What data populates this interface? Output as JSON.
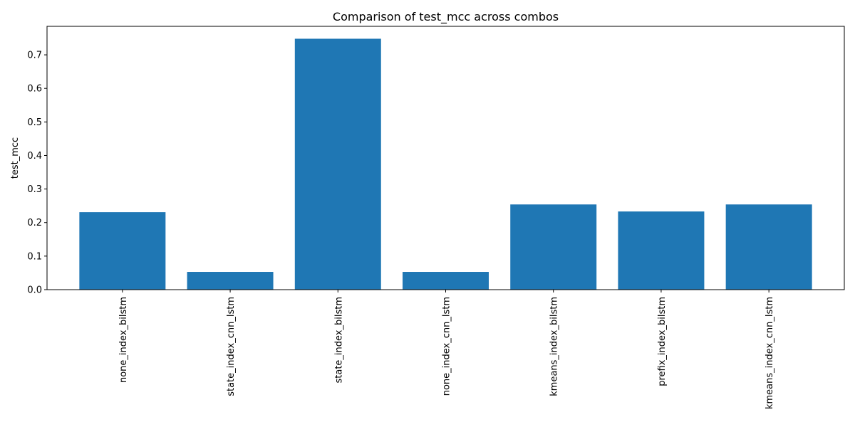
{
  "chart_data": {
    "type": "bar",
    "title": "Comparison of test_mcc across combos",
    "xlabel": "",
    "ylabel": "test_mcc",
    "categories": [
      "none_index_bilstm",
      "state_index_cnn_lstm",
      "state_index_bilstm",
      "none_index_cnn_lstm",
      "kmeans_index_bilstm",
      "prefix_index_bilstm",
      "kmeans_index_cnn_lstm"
    ],
    "values": [
      0.231,
      0.053,
      0.748,
      0.053,
      0.254,
      0.233,
      0.254
    ],
    "ylim": [
      0,
      0.785
    ],
    "yticks": [
      0.0,
      0.1,
      0.2,
      0.3,
      0.4,
      0.5,
      0.6,
      0.7
    ],
    "ytick_labels": [
      "0.0",
      "0.1",
      "0.2",
      "0.3",
      "0.4",
      "0.5",
      "0.6",
      "0.7"
    ],
    "bar_color": "#1f77b4",
    "grid": false,
    "legend": "none"
  }
}
